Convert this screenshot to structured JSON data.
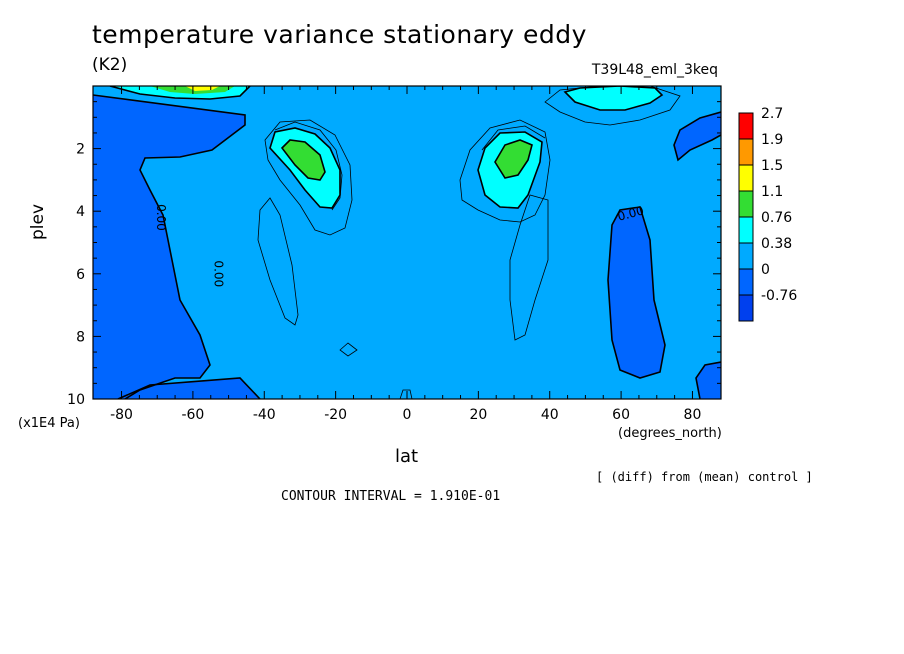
{
  "chart_data": {
    "type": "contour",
    "title": "temperature variance stationary eddy",
    "units": "(K2)",
    "experiment": "T39L48_eml_3keq",
    "xlabel": "lat",
    "x_units": "(degrees_north)",
    "ylabel": "plev",
    "y_units": "(x1E4 Pa)",
    "xlim": [
      -88,
      88
    ],
    "ylim": [
      0,
      10
    ],
    "y_inverted": true,
    "x_ticks": [
      -80,
      -60,
      -40,
      -20,
      0,
      20,
      40,
      60,
      80
    ],
    "y_ticks": [
      2,
      4,
      6,
      8,
      10
    ],
    "legend": {
      "placement": "right",
      "levels": [
        "2.7",
        "1.9",
        "1.5",
        "1.1",
        "0.76",
        "0.38",
        "0",
        "-0.76"
      ],
      "colors": [
        "#ff0000",
        "#ff9900",
        "#ffff00",
        "#33dd33",
        "#00ffff",
        "#00aaff",
        "#0066ff",
        "#0040ee"
      ]
    },
    "fill_colors": {
      "background": "#00aaff",
      "negative": "#0066ff",
      "low_positive": "#00ffff",
      "mid_positive": "#33dd33",
      "high_positive": "#ffff00",
      "very_high": "#ff9900",
      "max": "#ff0000"
    },
    "contour_labels": [
      {
        "text": "0.00",
        "x": -70,
        "y": 4.2
      },
      {
        "text": "0.00",
        "x": -54,
        "y": 6.0
      },
      {
        "text": "0.00",
        "x": 63,
        "y": 4.2
      }
    ],
    "notes": [
      "[ (diff) from (mean) control ]",
      "CONTOUR INTERVAL = 1.910E-01"
    ]
  }
}
